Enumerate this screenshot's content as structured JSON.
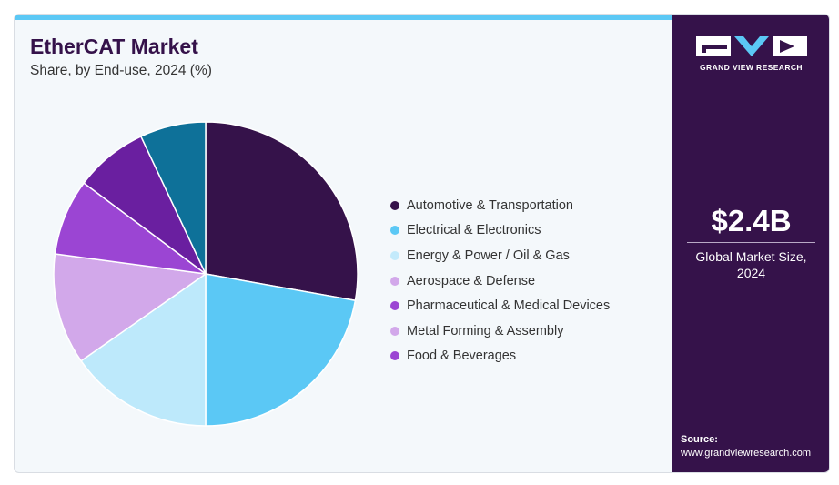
{
  "header": {
    "title": "EtherCAT Market",
    "subtitle": "Share, by End-use, 2024 (%)"
  },
  "sidebar": {
    "logo_text": "GRAND VIEW RESEARCH",
    "market_value": "$2.4B",
    "market_label": "Global Market Size, 2024",
    "source_label": "Source:",
    "source_url": "www.grandviewresearch.com"
  },
  "colors": {
    "accent_bar": "#5bc8f5",
    "sidebar_bg": "#35124a"
  },
  "chart_data": {
    "type": "pie",
    "title": "EtherCAT Market",
    "subtitle": "Share, by End-use, 2024 (%)",
    "start_angle_deg": 0,
    "direction": "clockwise",
    "legend_position": "right",
    "slices": [
      {
        "label": "Automotive & Transportation",
        "value": 27.8,
        "color": "#35124a"
      },
      {
        "label": "Electrical & Electronics",
        "value": 22.2,
        "color": "#5bc8f5"
      },
      {
        "label": "Energy & Power / Oil & Gas",
        "value": 15.3,
        "color": "#bde9fb"
      },
      {
        "label": "Aerospace & Defense",
        "value": 11.8,
        "color": "#d2a8ea"
      },
      {
        "label": "Pharmaceutical & Medical Devices",
        "value": 8.1,
        "color": "#9b45d3"
      },
      {
        "label": "Metal Forming & Assembly",
        "value": 7.8,
        "color": "#6a1fa0"
      },
      {
        "label": "Food & Beverages",
        "value": 7.0,
        "color": "#0e7199"
      }
    ],
    "legend": [
      {
        "label": "Automotive & Transportation",
        "color": "#35124a"
      },
      {
        "label": "Electrical & Electronics",
        "color": "#5bc8f5"
      },
      {
        "label": "Energy & Power / Oil & Gas",
        "color": "#c3eafb"
      },
      {
        "label": "Aerospace & Defense",
        "color": "#d2a8ea"
      },
      {
        "label": "Pharmaceutical & Medical Devices",
        "color": "#9b45d3"
      },
      {
        "label": "Metal Forming & Assembly",
        "color": "#d2a8ea"
      },
      {
        "label": "Food & Beverages",
        "color": "#9b45d3"
      }
    ]
  }
}
